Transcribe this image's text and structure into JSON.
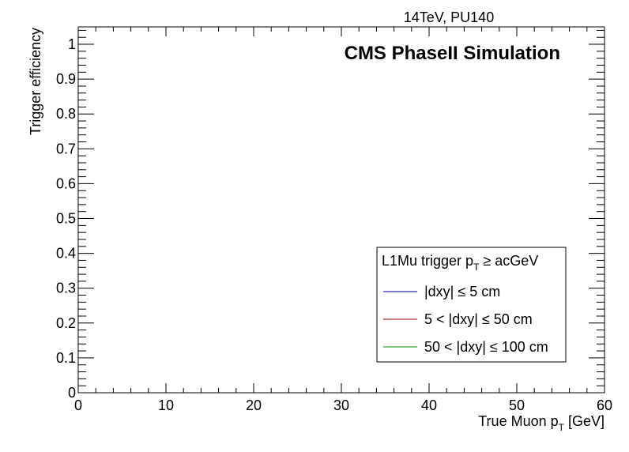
{
  "chart_data": {
    "type": "line",
    "top_right_label": "14TeV, PU140",
    "title": "CMS PhaseII Simulation",
    "xlabel": {
      "main": "True Muon p",
      "sub": "T",
      "unit": " [GeV]"
    },
    "ylabel": "Trigger efficiency",
    "xlim": [
      0,
      60
    ],
    "ylim": [
      0,
      1.05
    ],
    "x_ticks": [
      0,
      10,
      20,
      30,
      40,
      50,
      60
    ],
    "x_tick_labels": [
      "0",
      "10",
      "20",
      "30",
      "40",
      "50",
      "60"
    ],
    "y_ticks": [
      0,
      0.1,
      0.2,
      0.3,
      0.4,
      0.5,
      0.6,
      0.7,
      0.8,
      0.9,
      1
    ],
    "y_tick_labels": [
      "0",
      "0.1",
      "0.2",
      "0.3",
      "0.4",
      "0.5",
      "0.6",
      "0.7",
      "0.8",
      "0.9",
      "1"
    ],
    "grid": false,
    "legend": {
      "placement": "bottom-right",
      "header": {
        "main": "L1Mu trigger p",
        "sub": "T",
        "rest": " ≥ acGeV"
      },
      "entries": [
        {
          "label": "|dxy| ≤ 5 cm",
          "color": "#000099"
        },
        {
          "label": "5 < |dxy| ≤ 50 cm",
          "color": "#990000"
        },
        {
          "label": "50 < |dxy| ≤ 100 cm",
          "color": "#009900"
        }
      ]
    },
    "series": []
  }
}
